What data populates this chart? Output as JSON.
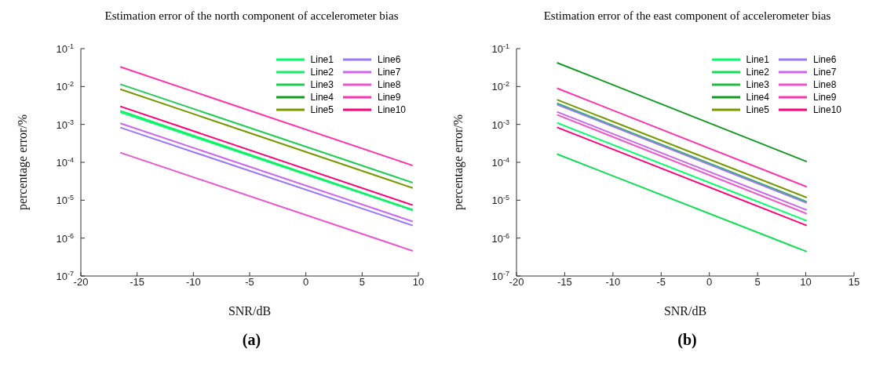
{
  "chart_data": [
    {
      "type": "line",
      "title": "Estimation error of the north component of accelerometer bias",
      "xlabel": "SNR/dB",
      "ylabel": "percentage error/%",
      "log": "y",
      "xlim": [
        -20,
        10
      ],
      "xticks": [
        -20,
        -15,
        -10,
        -5,
        0,
        5,
        10
      ],
      "ylim": [
        1e-07,
        0.1
      ],
      "yticks": [
        {
          "value": 1e-07,
          "label": "10$^{-7}$"
        },
        {
          "value": 1e-06,
          "label": "10$^{-6}$"
        },
        {
          "value": 1e-05,
          "label": "10$^{-5}$"
        },
        {
          "value": 0.0001,
          "label": "10$^{-4}$"
        },
        {
          "value": 0.001,
          "label": "10$^{-3}$"
        },
        {
          "value": 0.01,
          "label": "10$^{-2}$"
        },
        {
          "value": 0.1,
          "label": "10$^{-1}$"
        }
      ],
      "grid": false,
      "legend": "top right",
      "marker": "none",
      "line_style": "solid",
      "annotations": [
        "(a)"
      ],
      "x": [
        -16.5,
        9.5
      ],
      "series": [
        {
          "name": "Line1",
          "color": "#00ff66",
          "values": [
            0.0021,
            5.4e-06
          ]
        },
        {
          "name": "Line2",
          "color": "#11ee66",
          "values": [
            0.0023,
            5.6e-06
          ]
        },
        {
          "name": "Line3",
          "color": "#22cc55",
          "values": [
            0.0115,
            2.9e-05
          ]
        },
        {
          "name": "Line4",
          "color": "#119922",
          "values": [
            null,
            null
          ]
        },
        {
          "name": "Line5",
          "color": "#779900",
          "values": [
            0.0085,
            2.1e-05
          ]
        },
        {
          "name": "Line6",
          "color": "#9977ff",
          "values": [
            0.00083,
            2.15e-06
          ]
        },
        {
          "name": "Line7",
          "color": "#cc66ee",
          "values": [
            0.00107,
            2.75e-06
          ]
        },
        {
          "name": "Line8",
          "color": "#ee55cc",
          "values": [
            0.00018,
            4.6e-07
          ]
        },
        {
          "name": "Line9",
          "color": "#ff33aa",
          "values": [
            0.033,
            8.2e-05
          ]
        },
        {
          "name": "Line10",
          "color": "#ff0077",
          "values": [
            0.003,
            7.4e-06
          ]
        }
      ]
    },
    {
      "type": "line",
      "title": "Estimation error of the east component of accelerometer bias",
      "xlabel": "SNR/dB",
      "ylabel": "percentage error/%",
      "log": "y",
      "xlim": [
        -20,
        15
      ],
      "xticks": [
        -20,
        -15,
        -10,
        -5,
        0,
        5,
        10,
        15
      ],
      "ylim": [
        1e-07,
        0.1
      ],
      "yticks": [
        {
          "value": 1e-07,
          "label": "10$^{-7}$"
        },
        {
          "value": 1e-06,
          "label": "10$^{-6}$"
        },
        {
          "value": 1e-05,
          "label": "10$^{-5}$"
        },
        {
          "value": 0.0001,
          "label": "10$^{-4}$"
        },
        {
          "value": 0.001,
          "label": "10$^{-3}$"
        },
        {
          "value": 0.01,
          "label": "10$^{-2}$"
        },
        {
          "value": 0.1,
          "label": "10$^{-1}$"
        }
      ],
      "grid": false,
      "legend": "top right",
      "marker": "none",
      "line_style": "solid",
      "annotations": [
        "(b)"
      ],
      "x": [
        -15.8,
        10.1
      ],
      "series": [
        {
          "name": "Line1",
          "color": "#00ff66",
          "values": [
            0.0011,
            2.86e-06
          ]
        },
        {
          "name": "Line2",
          "color": "#11dd55",
          "values": [
            0.000165,
            4.4e-07
          ]
        },
        {
          "name": "Line3",
          "color": "#22bb44",
          "values": [
            0.0036,
            9.1e-06
          ]
        },
        {
          "name": "Line4",
          "color": "#119922",
          "values": [
            0.0425,
            0.000104
          ]
        },
        {
          "name": "Line5",
          "color": "#779900",
          "values": [
            0.0045,
            1.17e-05
          ]
        },
        {
          "name": "Line6",
          "color": "#9977ff",
          "values": [
            0.00335,
            8.5e-06
          ]
        },
        {
          "name": "Line7",
          "color": "#cc66ee",
          "values": [
            0.00215,
            5.5e-06
          ]
        },
        {
          "name": "Line8",
          "color": "#ee55cc",
          "values": [
            0.0018,
            4.4e-06
          ]
        },
        {
          "name": "Line9",
          "color": "#ff33aa",
          "values": [
            0.009,
            2.26e-05
          ]
        },
        {
          "name": "Line10",
          "color": "#ff0077",
          "values": [
            0.00084,
            2.15e-06
          ]
        }
      ]
    }
  ]
}
